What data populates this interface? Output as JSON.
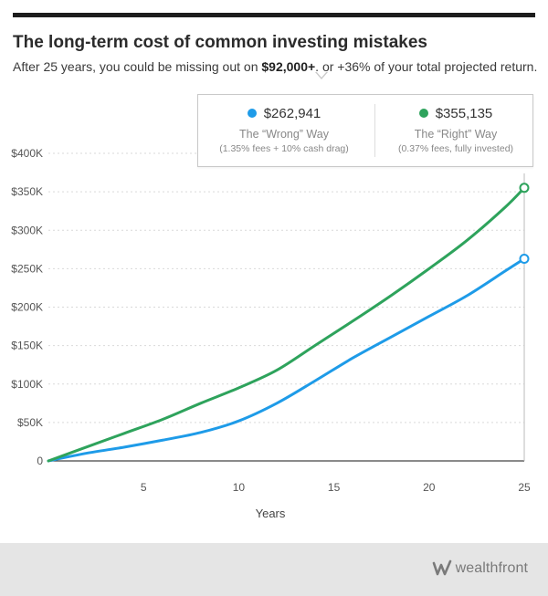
{
  "header": {
    "title": "The long-term cost of common investing mistakes",
    "subtitle_prefix": "After 25 years, you could be missing out on ",
    "subtitle_bold": "$92,000+",
    "subtitle_suffix": ", or +36% of your total projected return."
  },
  "tooltip": {
    "wrong": {
      "value": "$262,941",
      "name": "The “Wrong” Way",
      "note": "(1.35% fees + 10% cash drag)"
    },
    "right": {
      "value": "$355,135",
      "name": "The “Right” Way",
      "note": "(0.37% fees, fully invested)"
    }
  },
  "colors": {
    "wrong": "#1e9be8",
    "right": "#2ea35c",
    "grid": "#d9d9d9",
    "axis": "#444444"
  },
  "chart_data": {
    "type": "line",
    "title": "The long-term cost of common investing mistakes",
    "xlabel": "Years",
    "ylabel": "",
    "xlim": [
      0,
      25
    ],
    "ylim": [
      0,
      400000
    ],
    "x_ticks": [
      5,
      10,
      15,
      20,
      25
    ],
    "x_tick_labels": [
      "5",
      "10",
      "15",
      "20",
      "25"
    ],
    "y_ticks": [
      0,
      50000,
      100000,
      150000,
      200000,
      250000,
      300000,
      350000,
      400000
    ],
    "y_tick_labels": [
      "0",
      "$50K",
      "$100K",
      "$150K",
      "$200K",
      "$250K",
      "$300K",
      "$350K",
      "$400K"
    ],
    "grid": true,
    "x": [
      0,
      2,
      4,
      6,
      8,
      10,
      12,
      14,
      16,
      18,
      20,
      22,
      24,
      25
    ],
    "series": [
      {
        "name": "The “Wrong” Way",
        "color": "#1e9be8",
        "values": [
          0,
          10000,
          18000,
          27000,
          37000,
          52000,
          75000,
          104000,
          134000,
          161000,
          188000,
          215000,
          247000,
          262941
        ]
      },
      {
        "name": "The “Right” Way",
        "color": "#2ea35c",
        "values": [
          0,
          18000,
          36000,
          54000,
          75000,
          95000,
          118000,
          150000,
          182000,
          215000,
          250000,
          287000,
          330000,
          355135
        ]
      }
    ],
    "highlight_x": 25
  },
  "footer": {
    "brand": "wealthfront"
  }
}
